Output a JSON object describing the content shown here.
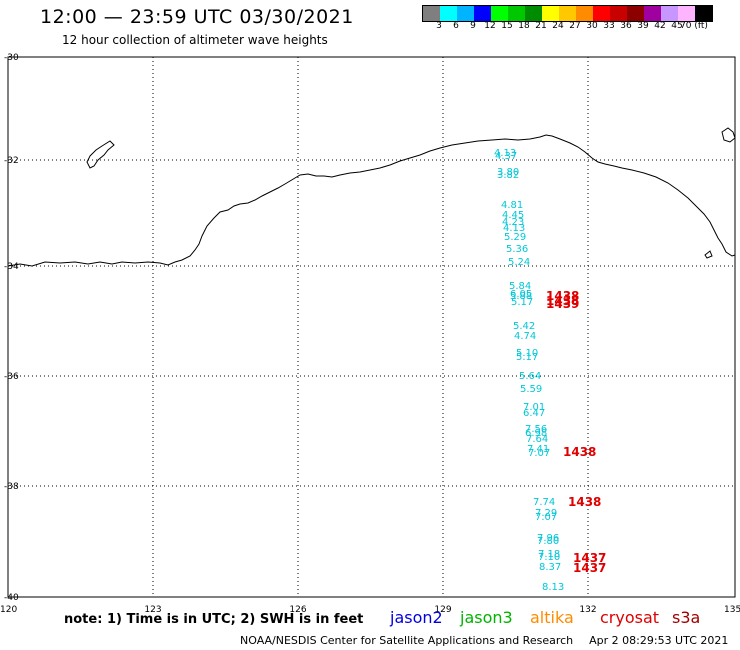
{
  "title": "12:00 — 23:59 UTC 03/30/2021",
  "subtitle": "12 hour collection of altimeter wave heights",
  "colorbar": {
    "colors": [
      "#7f7f7f",
      "#00ffff",
      "#00b4ff",
      "#0000ff",
      "#00ff00",
      "#00c800",
      "#008c00",
      "#ffff00",
      "#ffc800",
      "#ff8c00",
      "#ff0000",
      "#c80000",
      "#8c0000",
      "#a000a0",
      "#c896ff",
      "#ffb4ff",
      "#000000"
    ],
    "labels": [
      "3",
      "6",
      "9",
      "12",
      "15",
      "18",
      "21",
      "24",
      "27",
      "30",
      "33",
      "36",
      "39",
      "42",
      "45",
      "70 (ft)"
    ]
  },
  "map": {
    "lat_labels": [
      "-30",
      "-32",
      "-34",
      "-36",
      "-38",
      "-40"
    ],
    "lon_labels": [
      "120",
      "123",
      "126",
      "129",
      "132",
      "135"
    ],
    "wave_heights": [
      {
        "text": "4.13"
      },
      {
        "text": "4.37"
      },
      {
        "text": "3.80"
      },
      {
        "text": "3.82"
      },
      {
        "text": "4.81"
      },
      {
        "text": "4.45"
      },
      {
        "text": "4.23"
      },
      {
        "text": "4.13"
      },
      {
        "text": "5.29"
      },
      {
        "text": "5.36"
      },
      {
        "text": "5.24"
      },
      {
        "text": "5.84"
      },
      {
        "text": "6.05"
      },
      {
        "text": "5.88"
      },
      {
        "text": "5.17"
      },
      {
        "text": "5.42"
      },
      {
        "text": "4.74"
      },
      {
        "text": "5.10"
      },
      {
        "text": "5.17"
      },
      {
        "text": "5.64"
      },
      {
        "text": "5.59"
      },
      {
        "text": "7.01"
      },
      {
        "text": "6.47"
      },
      {
        "text": "7.56"
      },
      {
        "text": "6.98"
      },
      {
        "text": "7.64"
      },
      {
        "text": "7.41"
      },
      {
        "text": "7.07"
      },
      {
        "text": "7.74"
      },
      {
        "text": "7.29"
      },
      {
        "text": "7.07"
      },
      {
        "text": "7.96"
      },
      {
        "text": "7.80"
      },
      {
        "text": "7.18"
      },
      {
        "text": "7.10"
      },
      {
        "text": "8.37"
      },
      {
        "text": "8.13"
      }
    ],
    "pass_times": [
      {
        "text": "1438"
      },
      {
        "text": "1438"
      },
      {
        "text": "1439"
      },
      {
        "text": "1438"
      },
      {
        "text": "1438"
      },
      {
        "text": "1437"
      },
      {
        "text": "1437"
      }
    ]
  },
  "note": "note: 1) Time is in UTC; 2) SWH is in feet",
  "legend": [
    {
      "label": "jason2",
      "color": "#0000e0"
    },
    {
      "label": "jason3",
      "color": "#00b400"
    },
    {
      "label": "altika",
      "color": "#ff8c00"
    },
    {
      "label": "cryosat",
      "color": "#e00000"
    },
    {
      "label": "s3a",
      "color": "#a00000"
    }
  ],
  "footer": {
    "source": "NOAA/NESDIS Center for Satellite Applications and Research",
    "datetime": "Apr  2 08:29:53 UTC 2021"
  }
}
